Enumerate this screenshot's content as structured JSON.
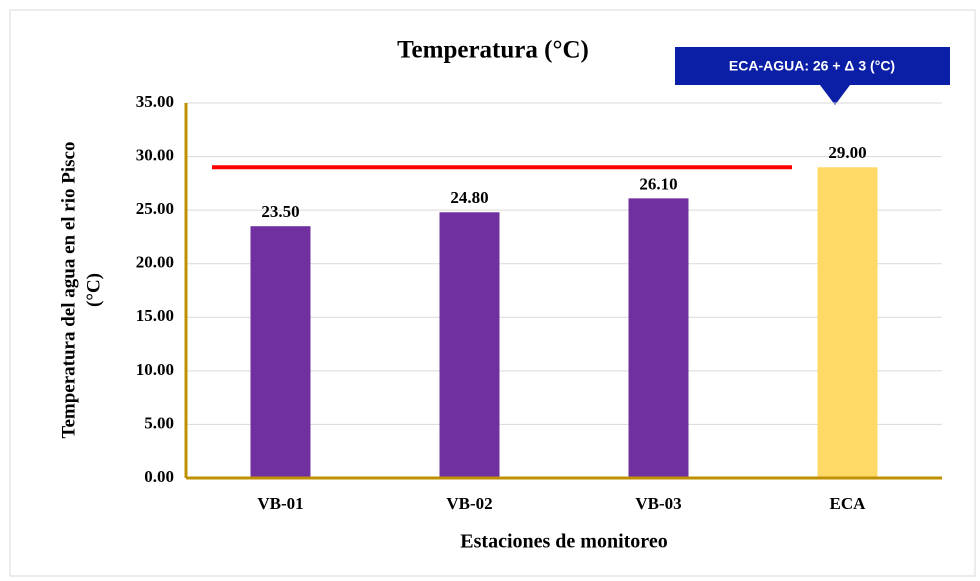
{
  "chart_data": {
    "type": "bar",
    "title": "Temperatura (°C)",
    "annotation": "ECA-AGUA: 26 + Δ 3 (°C)",
    "ylabel": [
      "Temperatura  del agua en el rio Pisco",
      "(°C)"
    ],
    "xlabel": "Estaciones de monitoreo",
    "categories": [
      "VB-01",
      "VB-02",
      "VB-03",
      "ECA"
    ],
    "values": [
      23.5,
      24.8,
      26.1,
      29
    ],
    "value_labels": [
      "23.50",
      "24.80",
      "26.10",
      "29.00"
    ],
    "colors": [
      "#7030a0",
      "#7030a0",
      "#7030a0",
      "#ffd966"
    ],
    "reference_line": {
      "value": 29,
      "color": "#ff0000"
    },
    "ylim": [
      0,
      35
    ],
    "yticks": [
      {
        "value": 0,
        "label": "0.00"
      },
      {
        "value": 5,
        "label": "5.00"
      },
      {
        "value": 10,
        "label": "10.00"
      },
      {
        "value": 15,
        "label": "15.00"
      },
      {
        "value": 20,
        "label": "20.00"
      },
      {
        "value": 25,
        "label": "25.00"
      },
      {
        "value": 30,
        "label": "30.00"
      },
      {
        "value": 35,
        "label": "35.00"
      }
    ],
    "grid": true
  }
}
